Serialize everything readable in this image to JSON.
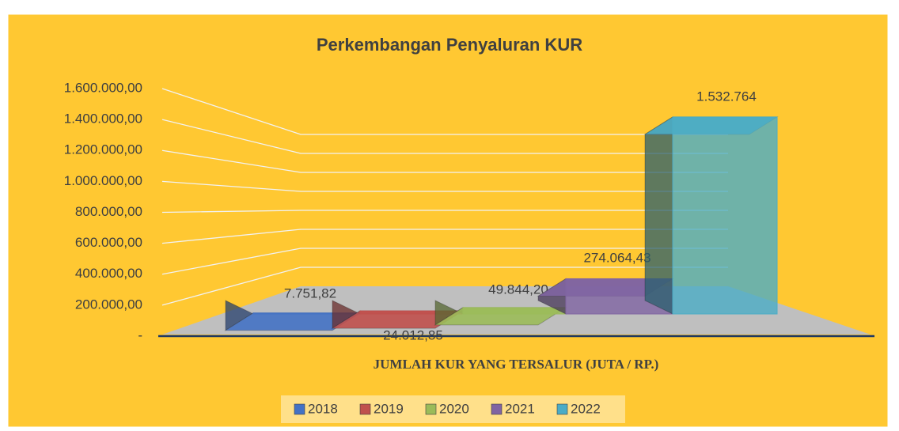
{
  "chart_data": {
    "type": "bar3d",
    "title": "Perkembangan Penyaluran KUR",
    "xlabel": "JUMLAH KUR YANG TERSALUR (JUTA / RP.)",
    "ylim": [
      0,
      1600000
    ],
    "yticks": [
      {
        "value": 0,
        "label": "-"
      },
      {
        "value": 200000,
        "label": "200.000,00"
      },
      {
        "value": 400000,
        "label": "400.000,00"
      },
      {
        "value": 600000,
        "label": "600.000,00"
      },
      {
        "value": 800000,
        "label": "800.000,00"
      },
      {
        "value": 1000000,
        "label": "1.000.000,00"
      },
      {
        "value": 1200000,
        "label": "1.200.000,00"
      },
      {
        "value": 1400000,
        "label": "1.400.000,00"
      },
      {
        "value": 1600000,
        "label": "1.600.000,00"
      }
    ],
    "grid": true,
    "legend": "bottom",
    "series": [
      {
        "name": "2018",
        "color": "#4472c4",
        "values": [
          7751.82
        ],
        "value_labels": [
          "7.751,82"
        ]
      },
      {
        "name": "2019",
        "color": "#c0504d",
        "values": [
          24012.85
        ],
        "value_labels": [
          "24.012,85"
        ]
      },
      {
        "name": "2020",
        "color": "#9bbb59",
        "values": [
          49844.2
        ],
        "value_labels": [
          "49.844,20"
        ]
      },
      {
        "name": "2021",
        "color": "#8064a2",
        "values": [
          274064.43
        ],
        "value_labels": [
          "274.064,43"
        ]
      },
      {
        "name": "2022",
        "color": "#4bacc6",
        "values": [
          1532764
        ],
        "value_labels": [
          "1.532.764"
        ]
      }
    ]
  }
}
